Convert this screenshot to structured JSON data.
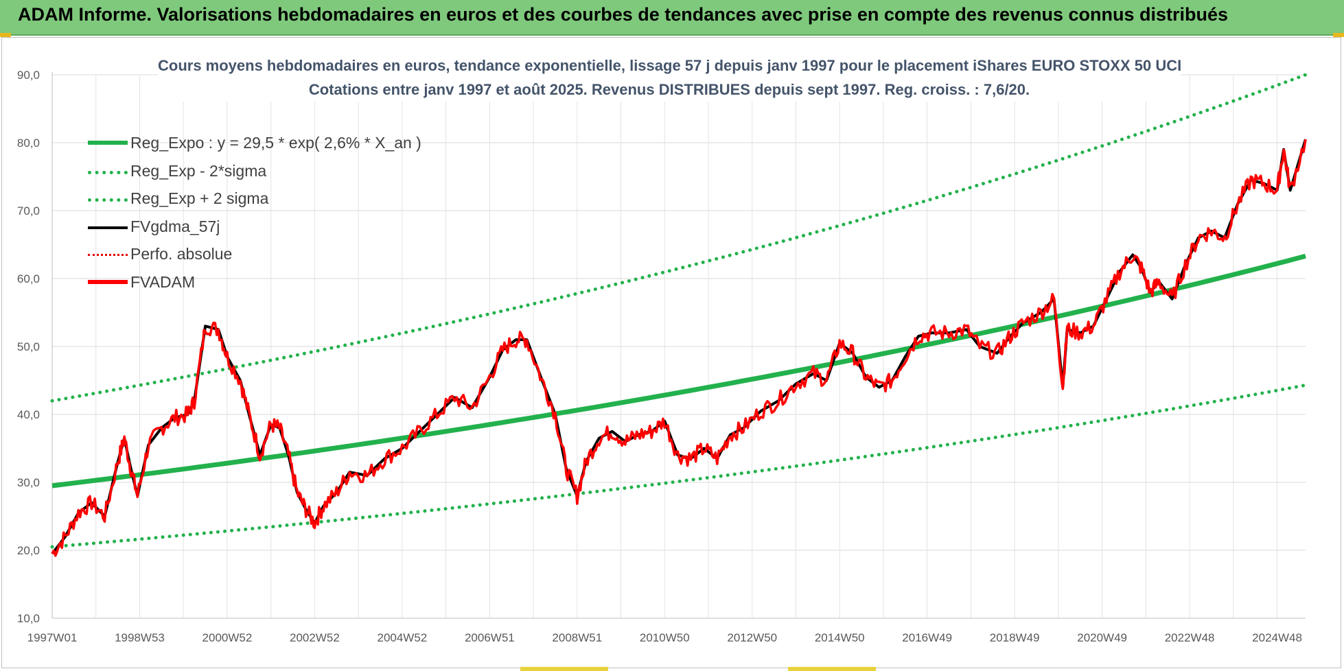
{
  "header": {
    "title": "ADAM Informe. Valorisations hebdomadaires en euros et des courbes de tendances avec prise en compte des revenus connus distribués"
  },
  "chart_data": {
    "type": "line",
    "title_line1": "Cours moyens hebdomadaires en euros, tendance exponentielle, lissage 57 j depuis janv 1997 pour le placement iShares EURO STOXX 50 UCI",
    "title_line2": "Cotations entre janv 1997 et août 2025.  Revenus DISTRIBUES depuis sept 1997.  Reg. croiss. : 7,6/20.",
    "ylim": [
      10,
      90
    ],
    "yticks": [
      "10,0",
      "20,0",
      "30,0",
      "40,0",
      "50,0",
      "60,0",
      "70,0",
      "80,0",
      "90,0"
    ],
    "xlim": [
      1997.0,
      2025.65
    ],
    "xticks": [
      {
        "label": "1997W01",
        "x": 1997.0
      },
      {
        "label": "1998W53",
        "x": 1999.0
      },
      {
        "label": "2000W52",
        "x": 2001.0
      },
      {
        "label": "2002W52",
        "x": 2003.0
      },
      {
        "label": "2004W52",
        "x": 2005.0
      },
      {
        "label": "2006W51",
        "x": 2007.0
      },
      {
        "label": "2008W51",
        "x": 2009.0
      },
      {
        "label": "2010W50",
        "x": 2011.0
      },
      {
        "label": "2012W50",
        "x": 2013.0
      },
      {
        "label": "2014W50",
        "x": 2015.0
      },
      {
        "label": "2016W49",
        "x": 2017.0
      },
      {
        "label": "2018W49",
        "x": 2019.0
      },
      {
        "label": "2020W49",
        "x": 2021.0
      },
      {
        "label": "2022W48",
        "x": 2023.0
      },
      {
        "label": "2024W48",
        "x": 2025.0
      }
    ],
    "grid": true,
    "legend_position": "top-left",
    "series": [
      {
        "name": "Reg_Expo : y = 29,5 * exp( 2,6% *  X_an )",
        "style": "solid-thick",
        "color": "#22b14c",
        "x": [
          1997.0,
          2025.65
        ],
        "y": [
          29.5,
          63.3
        ],
        "shape": "exponential"
      },
      {
        "name": "Reg_Exp - 2*sigma",
        "style": "dotted",
        "color": "#22b14c",
        "x": [
          1997.0,
          2025.65
        ],
        "y": [
          20.5,
          44.3
        ],
        "shape": "exponential"
      },
      {
        "name": "Reg_Exp + 2 sigma",
        "style": "dotted",
        "color": "#22b14c",
        "x": [
          1997.0,
          2025.65
        ],
        "y": [
          42.0,
          90.0
        ],
        "shape": "exponential"
      },
      {
        "name": "FVgdma_57j",
        "style": "solid",
        "color": "#000000"
      },
      {
        "name": "Perfo. absolue",
        "style": "dotted",
        "color": "#e00000"
      },
      {
        "name": "FVADAM",
        "style": "solid-thick",
        "color": "#ff0000",
        "x": [
          1997.0,
          1997.3,
          1997.6,
          1997.9,
          1998.2,
          1998.5,
          1998.65,
          1998.8,
          1998.95,
          1999.2,
          1999.5,
          1999.8,
          2000.1,
          2000.25,
          2000.5,
          2000.8,
          2001.0,
          2001.3,
          2001.5,
          2001.75,
          2002.0,
          2002.2,
          2002.4,
          2002.6,
          2002.8,
          2003.0,
          2003.2,
          2003.5,
          2003.8,
          2004.2,
          2004.6,
          2005.0,
          2005.4,
          2005.8,
          2006.2,
          2006.6,
          2007.0,
          2007.3,
          2007.6,
          2007.85,
          2008.2,
          2008.5,
          2008.75,
          2009.0,
          2009.2,
          2009.5,
          2009.8,
          2010.1,
          2010.4,
          2010.7,
          2011.0,
          2011.3,
          2011.6,
          2011.9,
          2012.2,
          2012.5,
          2012.8,
          2013.2,
          2013.6,
          2014.0,
          2014.4,
          2014.7,
          2015.0,
          2015.3,
          2015.6,
          2015.9,
          2016.2,
          2016.5,
          2016.8,
          2017.1,
          2017.5,
          2017.9,
          2018.2,
          2018.6,
          2018.9,
          2019.2,
          2019.6,
          2019.9,
          2020.1,
          2020.2,
          2020.5,
          2020.8,
          2021.1,
          2021.4,
          2021.7,
          2021.9,
          2022.1,
          2022.3,
          2022.6,
          2022.9,
          2023.2,
          2023.5,
          2023.8,
          2024.1,
          2024.4,
          2024.7,
          2025.0,
          2025.15,
          2025.3,
          2025.65
        ],
        "y": [
          19.5,
          22.0,
          25.5,
          27.0,
          25.0,
          33.0,
          36.5,
          32.0,
          28.0,
          35.5,
          38.0,
          39.5,
          40.0,
          42.0,
          53.0,
          52.5,
          48.5,
          45.0,
          40.0,
          34.0,
          38.5,
          38.0,
          34.0,
          28.5,
          26.0,
          24.0,
          26.5,
          28.5,
          31.5,
          31.0,
          33.5,
          35.0,
          37.5,
          40.0,
          42.5,
          41.0,
          45.5,
          49.5,
          51.0,
          51.0,
          45.0,
          40.0,
          32.0,
          28.0,
          33.0,
          36.5,
          37.5,
          36.0,
          37.0,
          37.5,
          39.0,
          34.0,
          33.5,
          35.0,
          33.5,
          37.0,
          38.0,
          40.5,
          42.0,
          44.5,
          46.0,
          45.0,
          50.5,
          49.0,
          45.5,
          44.0,
          45.0,
          48.5,
          51.5,
          52.0,
          52.0,
          52.5,
          50.0,
          49.0,
          51.5,
          53.5,
          55.0,
          57.0,
          44.0,
          52.5,
          52.0,
          53.0,
          57.0,
          61.0,
          63.5,
          61.5,
          58.0,
          59.5,
          57.0,
          62.0,
          66.0,
          67.0,
          66.0,
          71.0,
          74.5,
          74.0,
          73.0,
          79.0,
          73.0,
          80.5
        ]
      }
    ]
  }
}
